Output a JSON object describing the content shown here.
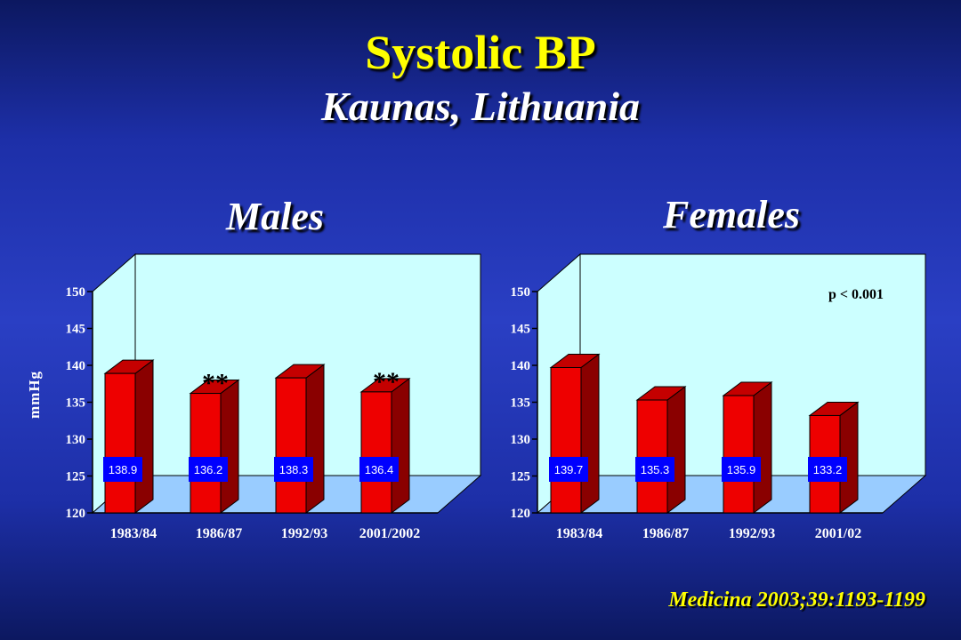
{
  "slide": {
    "title": "Systolic BP",
    "subtitle": "Kaunas, Lithuania",
    "citation": "Medicina 2003;39:1193-1199",
    "ylabel": "mmHg"
  },
  "colors": {
    "bar_front": "#ee0000",
    "bar_side": "#8a0000",
    "bar_top": "#c40000",
    "plot_back": "#ccffff",
    "floor": "#99ccff",
    "value_box": "#0000ff",
    "title_yellow": "#ffff00"
  },
  "chart_data": [
    {
      "type": "bar",
      "title": "Males",
      "ylabel": "mmHg",
      "categories": [
        "1983/84",
        "1986/87",
        "1992/93",
        "2001/2002"
      ],
      "values": [
        138.9,
        136.2,
        138.3,
        136.4
      ],
      "value_labels": [
        "138.9",
        "136.2",
        "138.3",
        "136.4"
      ],
      "significance_marks": [
        "",
        "**",
        "",
        "**"
      ],
      "ylim": [
        120,
        150
      ],
      "yticks": [
        120,
        125,
        130,
        135,
        140,
        145,
        150
      ],
      "annotation": ""
    },
    {
      "type": "bar",
      "title": "Females",
      "ylabel": "",
      "categories": [
        "1983/84",
        "1986/87",
        "1992/93",
        "2001/02"
      ],
      "values": [
        139.7,
        135.3,
        135.9,
        133.2
      ],
      "value_labels": [
        "139.7",
        "135.3",
        "135.9",
        "133.2"
      ],
      "significance_marks": [
        "",
        "",
        "",
        ""
      ],
      "ylim": [
        120,
        150
      ],
      "yticks": [
        120,
        125,
        130,
        135,
        140,
        145,
        150
      ],
      "annotation": "p < 0.001"
    }
  ]
}
